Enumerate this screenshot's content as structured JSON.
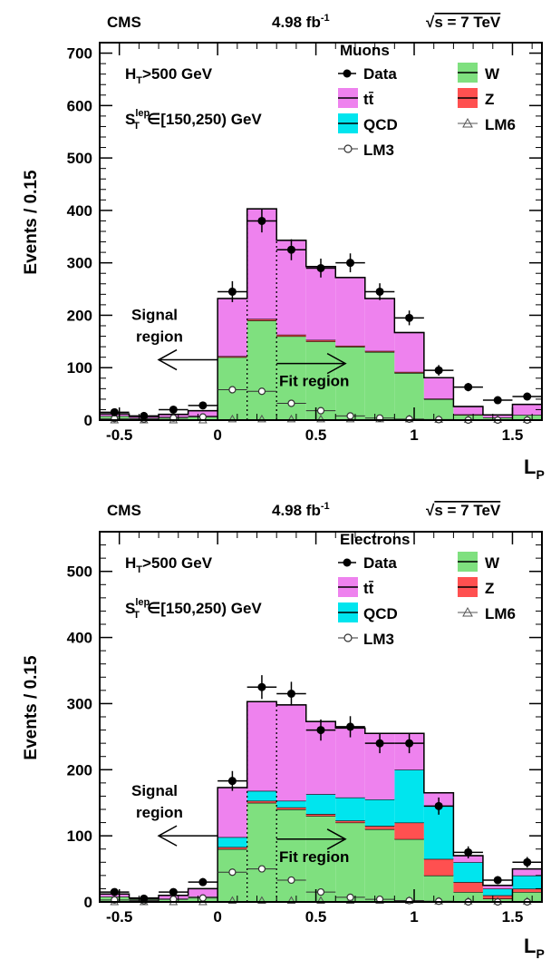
{
  "chart_data": [
    {
      "type": "bar",
      "panel": "top",
      "header": {
        "experiment": "CMS",
        "lumi": "4.98 fb",
        "lumi_sup": "-1",
        "energy_root": "√",
        "energy": "s = 7 TeV"
      },
      "cut_label": {
        "ht_main": "H",
        "ht_sub": "T",
        "ht_rest": ">500 GeV",
        "st_main": "S",
        "st_sub": "T",
        "st_sup": "lep",
        "st_rest": "∈[150,250) GeV"
      },
      "channel": "Muons",
      "xlabel": "L",
      "xlabel_sub": "P",
      "ylabel": "Events / 0.15",
      "xlim": [
        -0.6,
        1.65
      ],
      "ylim": [
        0,
        720
      ],
      "xticks": [
        "-0.5",
        "0",
        "0.5",
        "1",
        "1.5"
      ],
      "xtick_values": [
        -0.5,
        0,
        0.5,
        1,
        1.5
      ],
      "yticks": [
        "0",
        "100",
        "200",
        "300",
        "400",
        "500",
        "600",
        "700"
      ],
      "ytick_values": [
        0,
        100,
        200,
        300,
        400,
        500,
        600,
        700
      ],
      "bin_edges": [
        -0.6,
        -0.45,
        -0.3,
        -0.15,
        0,
        0.15,
        0.3,
        0.45,
        0.6,
        0.75,
        0.9,
        1.05,
        1.2,
        1.35,
        1.5,
        1.65
      ],
      "stack_colors": {
        "W": "#7fe07f",
        "ttbar": "#ee82ee",
        "QCD": "#00e5ee",
        "Z": "#ff5050"
      },
      "stack_order": [
        "W",
        "Z",
        "QCD",
        "ttbar"
      ],
      "stacked": {
        "W": [
          8,
          4,
          6,
          8,
          120,
          190,
          160,
          150,
          140,
          130,
          90,
          40,
          10,
          5,
          10
        ],
        "Z": [
          0,
          0,
          0,
          0,
          2,
          3,
          3,
          3,
          2,
          2,
          2,
          1,
          1,
          0,
          0
        ],
        "QCD": [
          0,
          0,
          0,
          0,
          0,
          0,
          0,
          0,
          0,
          0,
          0,
          0,
          0,
          0,
          0
        ],
        "ttbar": [
          4,
          3,
          5,
          10,
          110,
          210,
          180,
          140,
          130,
          100,
          75,
          40,
          15,
          5,
          20
        ]
      },
      "data": [
        15,
        8,
        20,
        28,
        245,
        380,
        325,
        290,
        300,
        245,
        195,
        95,
        63,
        38,
        45
      ],
      "data_err": [
        6,
        4,
        6,
        7,
        20,
        22,
        20,
        18,
        18,
        16,
        14,
        10,
        8,
        7,
        7
      ],
      "lm3": [
        3,
        2,
        4,
        6,
        58,
        55,
        32,
        18,
        8,
        4,
        2,
        1,
        0,
        0,
        0
      ],
      "lm6": [
        0,
        0,
        0,
        0,
        2,
        2,
        2,
        2,
        2,
        2,
        2,
        1,
        1,
        1,
        1
      ],
      "cut_lines": [
        0.15,
        0.3
      ],
      "annotations": {
        "signal_l1": "Signal",
        "signal_l2": "region",
        "fit": "Fit region"
      },
      "annotation_arrows": [
        {
          "from": 0.0,
          "to": -0.3,
          "y": 115
        },
        {
          "from": 0.3,
          "to": 0.65,
          "y": 108
        }
      ],
      "legend": {
        "data": "Data",
        "ttbar": "tt̄",
        "qcd": "QCD",
        "lm3": "LM3",
        "w": "W",
        "z": "Z",
        "lm6": "LM6"
      }
    },
    {
      "type": "bar",
      "panel": "bottom",
      "header": {
        "experiment": "CMS",
        "lumi": "4.98 fb",
        "lumi_sup": "-1",
        "energy_root": "√",
        "energy": "s = 7 TeV"
      },
      "cut_label": {
        "ht_main": "H",
        "ht_sub": "T",
        "ht_rest": ">500 GeV",
        "st_main": "S",
        "st_sub": "T",
        "st_sup": "lep",
        "st_rest": "∈[150,250) GeV"
      },
      "channel": "Electrons",
      "xlabel": "L",
      "xlabel_sub": "P",
      "ylabel": "Events / 0.15",
      "xlim": [
        -0.6,
        1.65
      ],
      "ylim": [
        0,
        560
      ],
      "xticks": [
        "-0.5",
        "0",
        "0.5",
        "1",
        "1.5"
      ],
      "xtick_values": [
        -0.5,
        0,
        0.5,
        1,
        1.5
      ],
      "yticks": [
        "0",
        "100",
        "200",
        "300",
        "400",
        "500"
      ],
      "ytick_values": [
        0,
        100,
        200,
        300,
        400,
        500
      ],
      "bin_edges": [
        -0.6,
        -0.45,
        -0.3,
        -0.15,
        0,
        0.15,
        0.3,
        0.45,
        0.6,
        0.75,
        0.9,
        1.05,
        1.2,
        1.35,
        1.5,
        1.65
      ],
      "stack_colors": {
        "W": "#7fe07f",
        "ttbar": "#ee82ee",
        "QCD": "#00e5ee",
        "Z": "#ff5050"
      },
      "stack_order": [
        "W",
        "Z",
        "QCD",
        "ttbar"
      ],
      "stacked": {
        "W": [
          8,
          4,
          5,
          8,
          80,
          150,
          140,
          130,
          120,
          110,
          95,
          40,
          15,
          5,
          15
        ],
        "Z": [
          0,
          0,
          0,
          0,
          3,
          3,
          3,
          3,
          3,
          5,
          25,
          25,
          15,
          5,
          5
        ],
        "QCD": [
          0,
          0,
          0,
          0,
          15,
          15,
          10,
          30,
          35,
          40,
          80,
          80,
          30,
          10,
          20
        ],
        "ttbar": [
          4,
          2,
          5,
          12,
          75,
          135,
          145,
          110,
          105,
          100,
          55,
          20,
          10,
          5,
          10
        ]
      },
      "data": [
        15,
        5,
        15,
        30,
        183,
        325,
        315,
        260,
        265,
        240,
        240,
        145,
        75,
        33,
        60
      ],
      "data_err": [
        5,
        3,
        5,
        6,
        15,
        18,
        18,
        16,
        16,
        15,
        15,
        13,
        9,
        6,
        8
      ],
      "lm3": [
        3,
        2,
        4,
        6,
        45,
        50,
        33,
        15,
        7,
        4,
        2,
        1,
        0,
        0,
        0
      ],
      "lm6": [
        0,
        0,
        0,
        0,
        2,
        2,
        2,
        2,
        2,
        2,
        2,
        1,
        1,
        1,
        1
      ],
      "cut_lines": [
        0.15,
        0.3
      ],
      "annotations": {
        "signal_l1": "Signal",
        "signal_l2": "region",
        "fit": "Fit region"
      },
      "annotation_arrows": [
        {
          "from": 0.0,
          "to": -0.3,
          "y": 100
        },
        {
          "from": 0.3,
          "to": 0.65,
          "y": 95
        }
      ],
      "legend": {
        "data": "Data",
        "ttbar": "tt̄",
        "qcd": "QCD",
        "lm3": "LM3",
        "w": "W",
        "z": "Z",
        "lm6": "LM6"
      }
    }
  ]
}
